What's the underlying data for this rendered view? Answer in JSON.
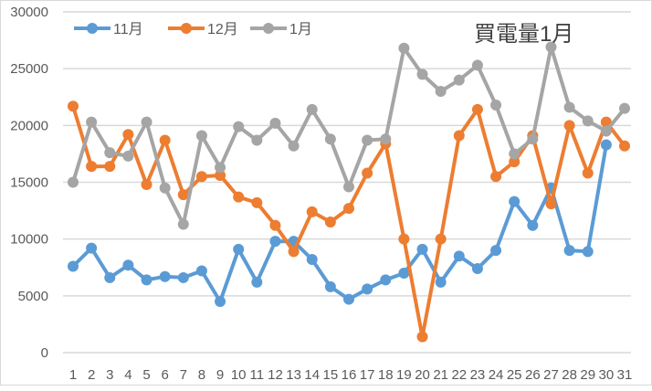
{
  "chart_data": {
    "type": "line",
    "title": "買電量1月",
    "xlabel": "",
    "ylabel": "",
    "ylim": [
      0,
      30000
    ],
    "yticks": [
      0,
      5000,
      10000,
      15000,
      20000,
      25000,
      30000
    ],
    "grid": true,
    "legend_position": "top-left",
    "categories": [
      "1",
      "2",
      "3",
      "4",
      "5",
      "6",
      "7",
      "8",
      "9",
      "10",
      "11",
      "12",
      "13",
      "14",
      "15",
      "16",
      "17",
      "18",
      "19",
      "20",
      "21",
      "22",
      "23",
      "24",
      "25",
      "26",
      "27",
      "28",
      "29",
      "30",
      "31"
    ],
    "series": [
      {
        "name": "11月",
        "color": "#5b9bd5",
        "values": [
          7600,
          9200,
          6600,
          7700,
          6400,
          6700,
          6600,
          7200,
          4500,
          9100,
          6200,
          9800,
          9800,
          8200,
          5800,
          4700,
          5600,
          6400,
          7000,
          9100,
          6200,
          8500,
          7400,
          9000,
          13300,
          11200,
          14500,
          9000,
          8900,
          18300,
          null
        ]
      },
      {
        "name": "12月",
        "color": "#ed7d31",
        "values": [
          21700,
          16400,
          16400,
          19200,
          14800,
          18700,
          13900,
          15500,
          15600,
          13700,
          13200,
          11200,
          8900,
          12400,
          11500,
          12700,
          15800,
          18400,
          10000,
          1400,
          10000,
          19100,
          21400,
          15500,
          16800,
          19100,
          13100,
          20000,
          15800,
          20300,
          18200
        ]
      },
      {
        "name": "1月",
        "color": "#a5a5a5",
        "values": [
          15000,
          20300,
          17600,
          17300,
          20300,
          14500,
          11300,
          19100,
          16300,
          19900,
          18700,
          20200,
          18200,
          21400,
          18800,
          14600,
          18700,
          18800,
          26800,
          24500,
          23000,
          24000,
          25300,
          21800,
          17500,
          18800,
          26900,
          21600,
          20400,
          19500,
          21500
        ]
      }
    ]
  }
}
